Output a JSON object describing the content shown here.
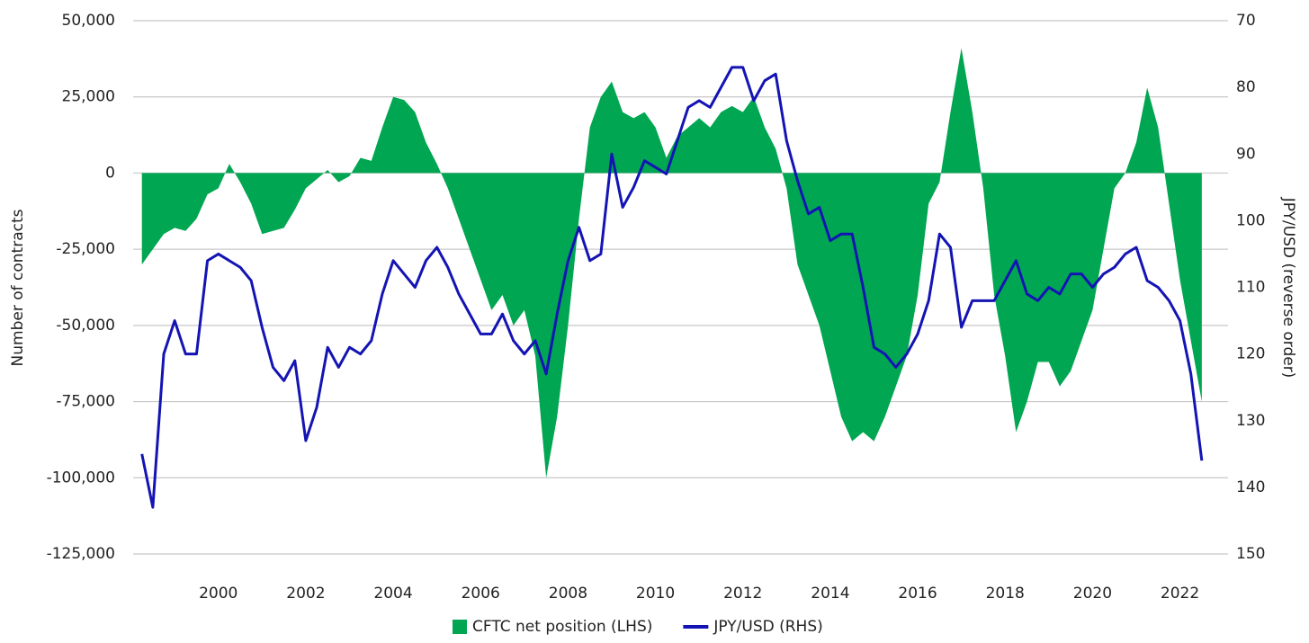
{
  "chart_data": {
    "type": "area-line",
    "y_label": "Number of contracts",
    "y2_label": "JPY/USD (reverse order)",
    "xlim": [
      1998.05,
      2023.1
    ],
    "xticks": [
      2000,
      2002,
      2004,
      2006,
      2008,
      2010,
      2012,
      2014,
      2016,
      2018,
      2020,
      2022
    ],
    "ylim": [
      -125000,
      50000
    ],
    "yticks": [
      {
        "value": -125000,
        "label": "-125,000"
      },
      {
        "value": -100000,
        "label": "-100,000"
      },
      {
        "value": -75000,
        "label": "-75,000"
      },
      {
        "value": -50000,
        "label": "-50,000"
      },
      {
        "value": -25000,
        "label": "-25,000"
      },
      0,
      {
        "value": 25000,
        "label": "25,000"
      },
      {
        "value": 50000,
        "label": "50,000"
      }
    ],
    "y2lim": [
      70,
      150
    ],
    "y2_reversed": true,
    "y2ticks": [
      70,
      80,
      90,
      100,
      110,
      120,
      130,
      140,
      150
    ],
    "grid": true,
    "x": [
      1998.25,
      1998.5,
      1998.75,
      1999,
      1999.25,
      1999.5,
      1999.75,
      2000,
      2000.25,
      2000.5,
      2000.75,
      2001,
      2001.25,
      2001.5,
      2001.75,
      2002,
      2002.25,
      2002.5,
      2002.75,
      2003,
      2003.25,
      2003.5,
      2003.75,
      2004,
      2004.25,
      2004.5,
      2004.75,
      2005,
      2005.25,
      2005.5,
      2005.75,
      2006,
      2006.25,
      2006.5,
      2006.75,
      2007,
      2007.25,
      2007.5,
      2007.75,
      2008,
      2008.25,
      2008.5,
      2008.75,
      2009,
      2009.25,
      2009.5,
      2009.75,
      2010,
      2010.25,
      2010.5,
      2010.75,
      2011,
      2011.25,
      2011.5,
      2011.75,
      2012,
      2012.25,
      2012.5,
      2012.75,
      2013,
      2013.25,
      2013.5,
      2013.75,
      2014,
      2014.25,
      2014.5,
      2014.75,
      2015,
      2015.25,
      2015.5,
      2015.75,
      2016,
      2016.25,
      2016.5,
      2016.75,
      2017,
      2017.25,
      2017.5,
      2017.75,
      2018,
      2018.25,
      2018.5,
      2018.75,
      2019,
      2019.25,
      2019.5,
      2019.75,
      2020,
      2020.25,
      2020.5,
      2020.75,
      2021,
      2021.25,
      2021.5,
      2021.75,
      2022,
      2022.25,
      2022.5
    ],
    "series": [
      {
        "name": "CFTC net position (LHS)",
        "color": "#00a651",
        "kind": "area",
        "axis": "y",
        "values": [
          -30000,
          -25000,
          -20000,
          -18000,
          -19000,
          -15000,
          -7000,
          -5000,
          3000,
          -3000,
          -10000,
          -20000,
          -19000,
          -18000,
          -12000,
          -5000,
          -2000,
          1000,
          -3000,
          -1000,
          5000,
          4000,
          15000,
          25000,
          24000,
          20000,
          10000,
          3000,
          -5000,
          -15000,
          -25000,
          -35000,
          -45000,
          -40000,
          -50000,
          -45000,
          -60000,
          -100000,
          -80000,
          -50000,
          -15000,
          15000,
          25000,
          30000,
          20000,
          18000,
          20000,
          15000,
          5000,
          12000,
          15000,
          18000,
          15000,
          20000,
          22000,
          20000,
          25000,
          15000,
          8000,
          -5000,
          -30000,
          -40000,
          -50000,
          -65000,
          -80000,
          -88000,
          -85000,
          -88000,
          -80000,
          -70000,
          -60000,
          -40000,
          -10000,
          -3000,
          20000,
          41000,
          20000,
          -5000,
          -40000,
          -60000,
          -85000,
          -75000,
          -62000,
          -62000,
          -70000,
          -65000,
          -55000,
          -45000,
          -25000,
          -5000,
          0,
          10000,
          28000,
          15000,
          -10000,
          -35000,
          -55000,
          -75000
        ]
      },
      {
        "name": "JPY/USD (RHS)",
        "color": "#1414b4",
        "kind": "line",
        "axis": "y2",
        "values": [
          135,
          143,
          120,
          115,
          120,
          120,
          106,
          105,
          106,
          107,
          109,
          116,
          122,
          124,
          121,
          133,
          128,
          119,
          122,
          119,
          120,
          118,
          111,
          106,
          108,
          110,
          106,
          104,
          107,
          111,
          114,
          117,
          117,
          114,
          118,
          120,
          118,
          123,
          114,
          106,
          101,
          106,
          105,
          90,
          98,
          95,
          91,
          92,
          93,
          88,
          83,
          82,
          83,
          80,
          77,
          77,
          82,
          79,
          78,
          88,
          94,
          99,
          98,
          103,
          102,
          102,
          110,
          119,
          120,
          122,
          120,
          117,
          112,
          102,
          104,
          116,
          112,
          112,
          112,
          109,
          106,
          111,
          112,
          110,
          111,
          108,
          108,
          110,
          108,
          107,
          105,
          104,
          109,
          110,
          112,
          115,
          123,
          136
        ]
      }
    ]
  }
}
